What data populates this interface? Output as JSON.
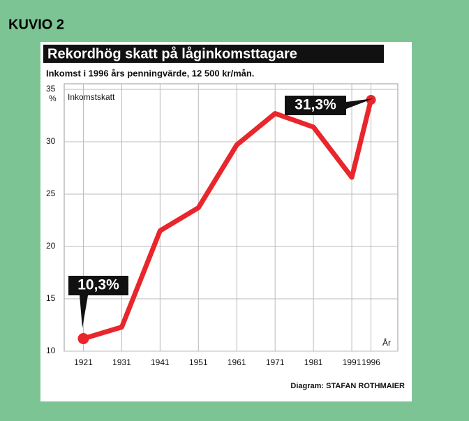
{
  "chart_data": {
    "type": "line",
    "label": "KUVIO 2",
    "title": "Rekordhög skatt på låginkomsttagare",
    "subtitle": "Inkomst i 1996 års penningvärde, 12 500 kr/mån.",
    "y_label": "Inkomstskatt",
    "y_unit": "%",
    "x_label": "År",
    "x": [
      1921,
      1931,
      1941,
      1951,
      1961,
      1971,
      1981,
      1991,
      1996
    ],
    "values": [
      11.2,
      12.3,
      21.5,
      23.7,
      29.7,
      32.7,
      31.4,
      26.6,
      34.0
    ],
    "color": "#e8262b",
    "xlim": [
      1916,
      2003
    ],
    "xticks": [
      1921,
      1931,
      1941,
      1951,
      1961,
      1971,
      1981,
      1991,
      1996
    ],
    "ylim": [
      10,
      35
    ],
    "yticks": [
      10,
      15,
      20,
      25,
      30,
      35
    ],
    "grid": true,
    "annotations": [
      "10,3%",
      "31,3%"
    ],
    "credit": "Diagram: STAFAN ROTHMAIER"
  }
}
